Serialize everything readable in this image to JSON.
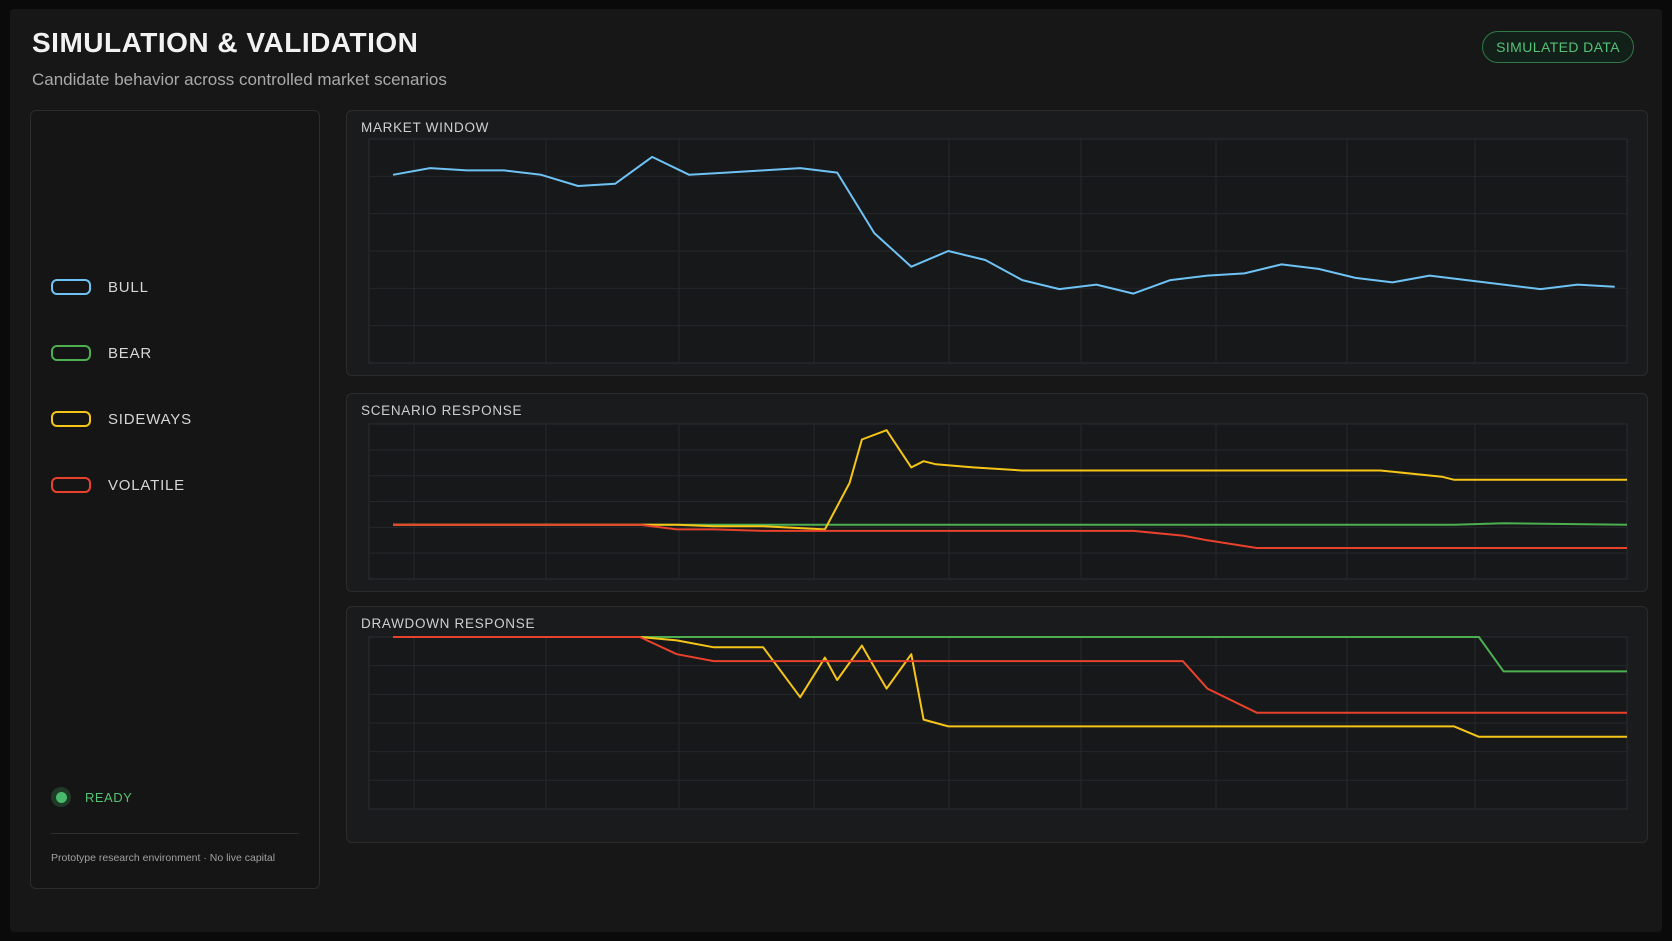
{
  "header": {
    "title": "SIMULATION & VALIDATION",
    "subtitle": "Candidate behavior across controlled market scenarios",
    "badge": "SIMULATED DATA"
  },
  "legend": [
    {
      "label": "BULL",
      "color": "#6ec3f4"
    },
    {
      "label": "BEAR",
      "color": "#4caf50"
    },
    {
      "label": "SIDEWAYS",
      "color": "#f5c518"
    },
    {
      "label": "VOLATILE",
      "color": "#e8412c"
    }
  ],
  "status": {
    "label": "READY",
    "color": "#49b96b"
  },
  "footer_note": "Prototype research environment · No live capital",
  "panels": {
    "market": {
      "title": "MARKET WINDOW"
    },
    "scenario": {
      "title": "SCENARIO RESPONSE"
    },
    "drawdown": {
      "title": "DRAWDOWN RESPONSE"
    }
  },
  "chart_data": [
    {
      "type": "line",
      "title": "MARKET WINDOW",
      "x": [
        0,
        3,
        6,
        9,
        12,
        15,
        18,
        21,
        24,
        27,
        30,
        33,
        36,
        39,
        42,
        45,
        48,
        51,
        54,
        57,
        60,
        63,
        66,
        69,
        72,
        75,
        78,
        81,
        84,
        87,
        90,
        93,
        96,
        99
      ],
      "ylim": [
        0,
        100
      ],
      "grid": true,
      "series": [
        {
          "color": "#6ec3f4",
          "values": [
            84,
            87,
            86,
            86,
            84,
            79,
            80,
            92,
            84,
            85,
            86,
            87,
            85,
            58,
            43,
            50,
            46,
            37,
            33,
            35,
            31,
            37,
            39,
            40,
            44,
            42,
            38,
            36,
            39,
            37,
            35,
            33,
            35,
            34
          ]
        }
      ]
    },
    {
      "type": "line",
      "title": "SCENARIO RESPONSE",
      "x": [
        0,
        10,
        20,
        23,
        26,
        30,
        35,
        37,
        38,
        40,
        42,
        43,
        44,
        47,
        51,
        55,
        60,
        64,
        66,
        70,
        80,
        85,
        86,
        90,
        100
      ],
      "ylim": [
        0,
        100
      ],
      "grid": true,
      "series": [
        {
          "color": "#4caf50",
          "values": [
            35,
            35,
            35,
            35,
            35,
            35,
            35,
            35,
            35,
            35,
            35,
            35,
            35,
            35,
            35,
            35,
            35,
            35,
            35,
            35,
            35,
            35,
            35,
            36,
            35
          ]
        },
        {
          "color": "#f5c518",
          "values": [
            35,
            35,
            35,
            35,
            34,
            34,
            32,
            62,
            90,
            96,
            72,
            76,
            74,
            72,
            70,
            70,
            70,
            70,
            70,
            70,
            70,
            66,
            64,
            64,
            64
          ]
        },
        {
          "color": "#e8412c",
          "values": [
            35,
            35,
            35,
            32,
            32,
            31,
            31,
            31,
            31,
            31,
            31,
            31,
            31,
            31,
            31,
            31,
            31,
            28,
            25,
            20,
            20,
            20,
            20,
            20,
            20
          ]
        }
      ]
    },
    {
      "type": "line",
      "title": "DRAWDOWN RESPONSE",
      "x": [
        0,
        10,
        20,
        23,
        26,
        30,
        33,
        35,
        36,
        38,
        40,
        42,
        43,
        44,
        45,
        47,
        50,
        52,
        55,
        60,
        64,
        66,
        70,
        80,
        85,
        86,
        88,
        90,
        100
      ],
      "ylim": [
        -100,
        0
      ],
      "grid": true,
      "series": [
        {
          "color": "#4caf50",
          "values": [
            0,
            0,
            0,
            0,
            0,
            0,
            0,
            0,
            0,
            0,
            0,
            0,
            0,
            0,
            0,
            0,
            0,
            0,
            0,
            0,
            0,
            0,
            0,
            0,
            0,
            0,
            0,
            -20,
            -20
          ]
        },
        {
          "color": "#f5c518",
          "values": [
            0,
            0,
            0,
            -2,
            -6,
            -6,
            -35,
            -12,
            -25,
            -5,
            -30,
            -10,
            -48,
            -50,
            -52,
            -52,
            -52,
            -52,
            -52,
            -52,
            -52,
            -52,
            -52,
            -52,
            -52,
            -52,
            -58,
            -58,
            -58
          ]
        },
        {
          "color": "#e8412c",
          "values": [
            0,
            0,
            0,
            -10,
            -14,
            -14,
            -14,
            -14,
            -14,
            -14,
            -14,
            -14,
            -14,
            -14,
            -14,
            -14,
            -14,
            -14,
            -14,
            -14,
            -14,
            -30,
            -44,
            -44,
            -44,
            -44,
            -44,
            -44,
            -44
          ]
        }
      ]
    }
  ]
}
